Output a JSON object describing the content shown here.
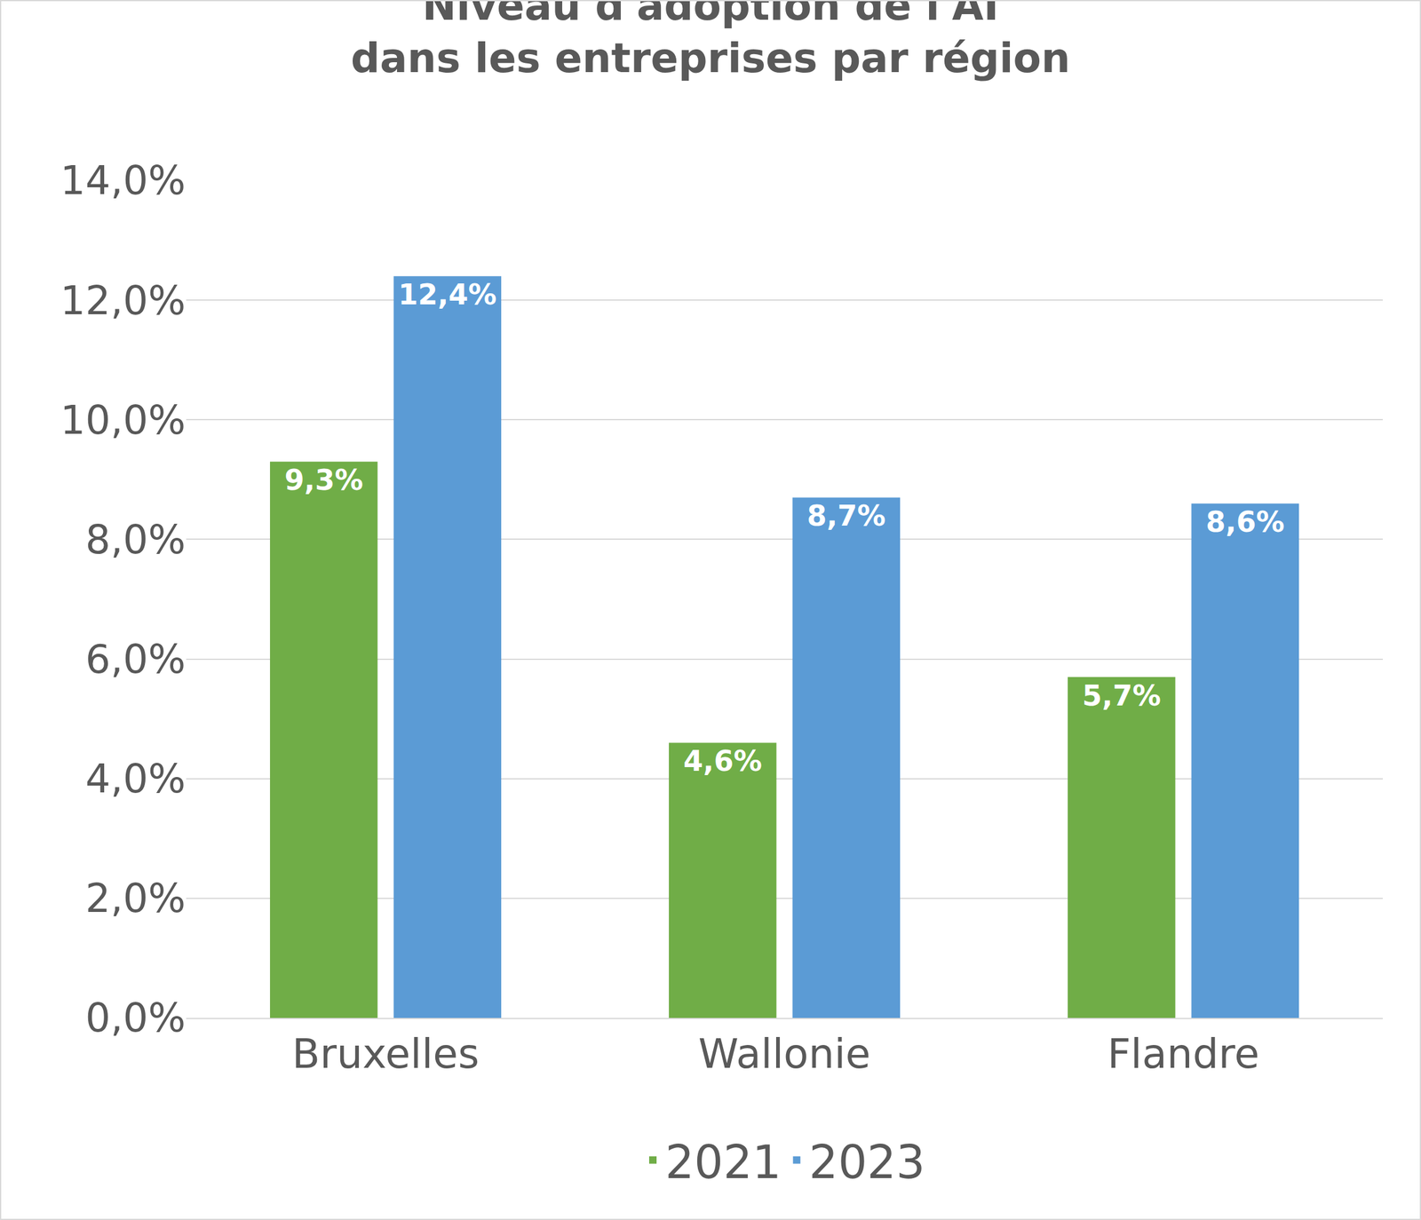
{
  "chart_data": {
    "type": "bar",
    "title": "Niveau d'adoption de l'AI\ndans les entreprises par région",
    "categories": [
      "Bruxelles",
      "Wallonie",
      "Flandre"
    ],
    "series": [
      {
        "name": "2021",
        "color": "#70ad47",
        "values": [
          9.3,
          4.6,
          5.7
        ],
        "value_labels": [
          "9,3%",
          "4,6%",
          "5,7%"
        ]
      },
      {
        "name": "2023",
        "color": "#5b9bd5",
        "values": [
          12.4,
          8.7,
          8.6
        ],
        "value_labels": [
          "12,4%",
          "8,7%",
          "8,6%"
        ]
      }
    ],
    "ylim": [
      0,
      14
    ],
    "yticks": [
      {
        "value": 0,
        "label": "0,0%"
      },
      {
        "value": 2,
        "label": "2,0%"
      },
      {
        "value": 4,
        "label": "4,0%"
      },
      {
        "value": 6,
        "label": "6,0%"
      },
      {
        "value": 8,
        "label": "8,0%"
      },
      {
        "value": 10,
        "label": "10,0%"
      },
      {
        "value": 12,
        "label": "12,0%"
      },
      {
        "value": 14,
        "label": "14,0%"
      }
    ],
    "grid": true,
    "legend": "bottom",
    "data_labels": true
  }
}
